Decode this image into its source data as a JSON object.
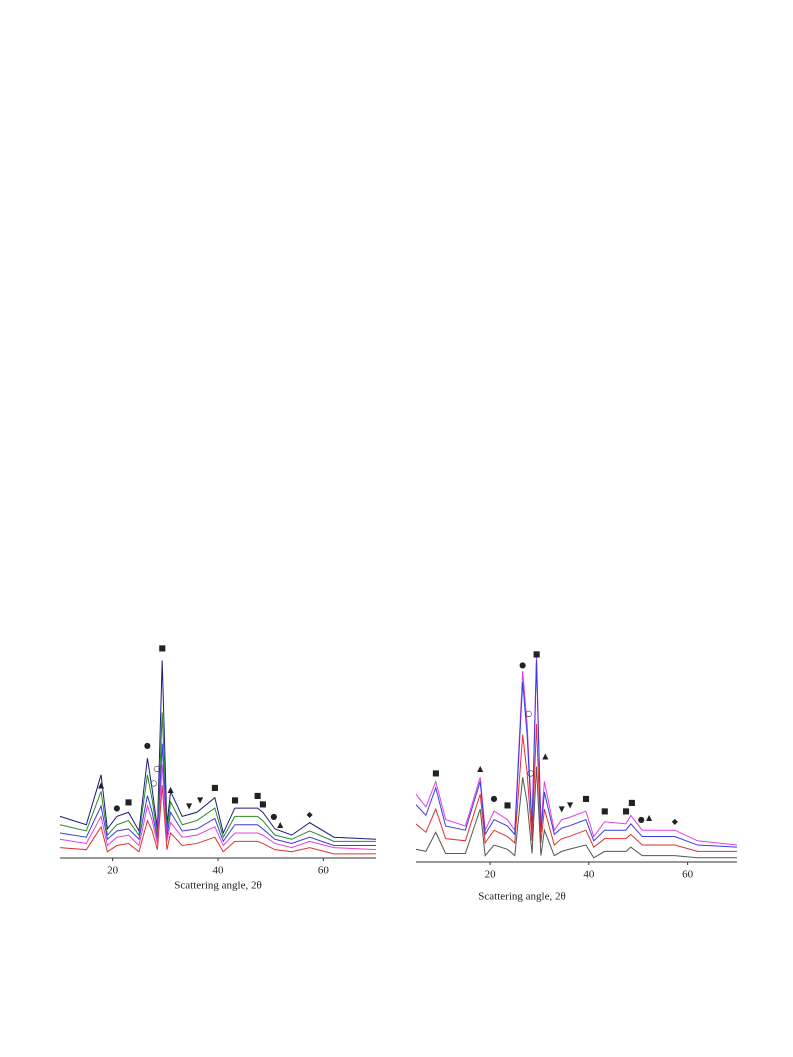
{
  "chart_data": [
    {
      "type": "line",
      "xlabel": "Scattering angle, 2θ",
      "xlim": [
        10,
        70
      ],
      "xticks": [
        20,
        40,
        60
      ],
      "ylim": [
        0,
        100
      ],
      "x": [
        10,
        15,
        17.8,
        19,
        20.8,
        23,
        25,
        26.6,
        27.5,
        28.5,
        29.4,
        30.3,
        31,
        33.2,
        36,
        39.4,
        41,
        43.2,
        47.5,
        48.5,
        50.8,
        54,
        57.4,
        62,
        70
      ],
      "series": [
        {
          "color": "#1c1c7c",
          "values": [
            20,
            16,
            40,
            14,
            20,
            22,
            13,
            48,
            33,
            14,
            95,
            16,
            32,
            20,
            22,
            29,
            12,
            24,
            24,
            22,
            14,
            11,
            17,
            10,
            9
          ]
        },
        {
          "color": "#2a8a2a",
          "values": [
            16,
            13,
            32,
            11,
            16,
            18,
            11,
            40,
            28,
            11,
            70,
            13,
            27,
            16,
            18,
            24,
            10,
            20,
            20,
            18,
            11,
            9,
            13,
            8,
            8
          ]
        },
        {
          "color": "#3a3ae0",
          "values": [
            12,
            10,
            25,
            9,
            13,
            14,
            9,
            30,
            22,
            9,
            55,
            10,
            22,
            13,
            14,
            19,
            8,
            16,
            16,
            14,
            9,
            7,
            10,
            6,
            6
          ]
        },
        {
          "color": "#e040e0",
          "values": [
            9,
            7,
            20,
            6,
            10,
            11,
            6,
            25,
            18,
            7,
            45,
            8,
            17,
            10,
            11,
            15,
            6,
            12,
            12,
            11,
            7,
            5,
            8,
            5,
            4
          ]
        },
        {
          "color": "#e03030",
          "values": [
            5,
            4,
            15,
            3,
            6,
            7,
            3,
            18,
            13,
            4,
            35,
            4,
            12,
            6,
            7,
            10,
            3,
            8,
            8,
            7,
            4,
            3,
            5,
            2,
            2
          ]
        }
      ],
      "annotations": [
        {
          "text": "▲",
          "x": 17.8,
          "y": 35
        },
        {
          "text": "●",
          "x": 20.8,
          "y": 24
        },
        {
          "text": "■",
          "x": 23,
          "y": 27
        },
        {
          "text": "●",
          "x": 26.6,
          "y": 54
        },
        {
          "text": "○",
          "x": 27.8,
          "y": 36
        },
        {
          "text": "○",
          "x": 28.4,
          "y": 43
        },
        {
          "text": "■",
          "x": 29.4,
          "y": 101
        },
        {
          "text": "▲",
          "x": 31,
          "y": 33
        },
        {
          "text": "▼",
          "x": 34.5,
          "y": 25
        },
        {
          "text": "▼",
          "x": 36.6,
          "y": 28
        },
        {
          "text": "■",
          "x": 39.4,
          "y": 34
        },
        {
          "text": "■",
          "x": 43.2,
          "y": 28
        },
        {
          "text": "■",
          "x": 47.5,
          "y": 30
        },
        {
          "text": "■",
          "x": 48.5,
          "y": 26
        },
        {
          "text": "●",
          "x": 50.6,
          "y": 20
        },
        {
          "text": "▲",
          "x": 51.8,
          "y": 16
        },
        {
          "text": "◆",
          "x": 57.4,
          "y": 21
        }
      ]
    },
    {
      "type": "line",
      "xlabel": "Scattering angle, 2θ",
      "xlim": [
        5,
        70
      ],
      "xticks": [
        20,
        40,
        60
      ],
      "ylim": [
        0,
        100
      ],
      "x": [
        5,
        7,
        9,
        11,
        15,
        18,
        19,
        20.8,
        23.5,
        25,
        26.6,
        27.5,
        28.5,
        29.4,
        30.3,
        31,
        33,
        34.5,
        36,
        39.4,
        41,
        43.2,
        47.5,
        48.5,
        50.8,
        52,
        57.4,
        62,
        70
      ],
      "series": [
        {
          "color": "#e040e0",
          "values": [
            32,
            26,
            38,
            20,
            17,
            40,
            15,
            24,
            20,
            15,
            90,
            65,
            18,
            98,
            17,
            38,
            15,
            20,
            21,
            24,
            12,
            19,
            18,
            22,
            15,
            15,
            15,
            10,
            8
          ]
        },
        {
          "color": "#3a3ae0",
          "values": [
            27,
            22,
            35,
            17,
            15,
            38,
            13,
            20,
            17,
            13,
            85,
            60,
            15,
            95,
            14,
            33,
            13,
            16,
            17,
            20,
            10,
            15,
            15,
            18,
            12,
            12,
            12,
            8,
            7
          ]
        },
        {
          "color": "#e03030",
          "values": [
            18,
            14,
            25,
            11,
            10,
            32,
            9,
            15,
            12,
            9,
            60,
            42,
            10,
            65,
            9,
            25,
            8,
            11,
            12,
            15,
            7,
            11,
            11,
            13,
            8,
            8,
            8,
            5,
            5
          ]
        },
        {
          "color": "#555555",
          "values": [
            6,
            5,
            14,
            4,
            4,
            25,
            3,
            8,
            6,
            3,
            40,
            28,
            4,
            45,
            3,
            15,
            3,
            5,
            6,
            8,
            2,
            5,
            5,
            7,
            3,
            3,
            3,
            2,
            2
          ]
        }
      ],
      "annotations": [
        {
          "text": "■",
          "x": 9,
          "y": 42
        },
        {
          "text": "▲",
          "x": 18,
          "y": 44
        },
        {
          "text": "●",
          "x": 20.8,
          "y": 30
        },
        {
          "text": "■",
          "x": 23.5,
          "y": 27
        },
        {
          "text": "●",
          "x": 26.6,
          "y": 93
        },
        {
          "text": "○",
          "x": 27.8,
          "y": 70
        },
        {
          "text": "○",
          "x": 28.2,
          "y": 42
        },
        {
          "text": "■",
          "x": 29.4,
          "y": 98
        },
        {
          "text": "▲",
          "x": 31.2,
          "y": 50
        },
        {
          "text": "▼",
          "x": 34.5,
          "y": 25
        },
        {
          "text": "▼",
          "x": 36.2,
          "y": 27
        },
        {
          "text": "■",
          "x": 39.4,
          "y": 30
        },
        {
          "text": "■",
          "x": 43.2,
          "y": 24
        },
        {
          "text": "■",
          "x": 47.5,
          "y": 24
        },
        {
          "text": "■",
          "x": 48.7,
          "y": 28
        },
        {
          "text": "●",
          "x": 50.6,
          "y": 20
        },
        {
          "text": "▲",
          "x": 52.2,
          "y": 21
        },
        {
          "text": "◆",
          "x": 57.4,
          "y": 19
        }
      ]
    }
  ]
}
